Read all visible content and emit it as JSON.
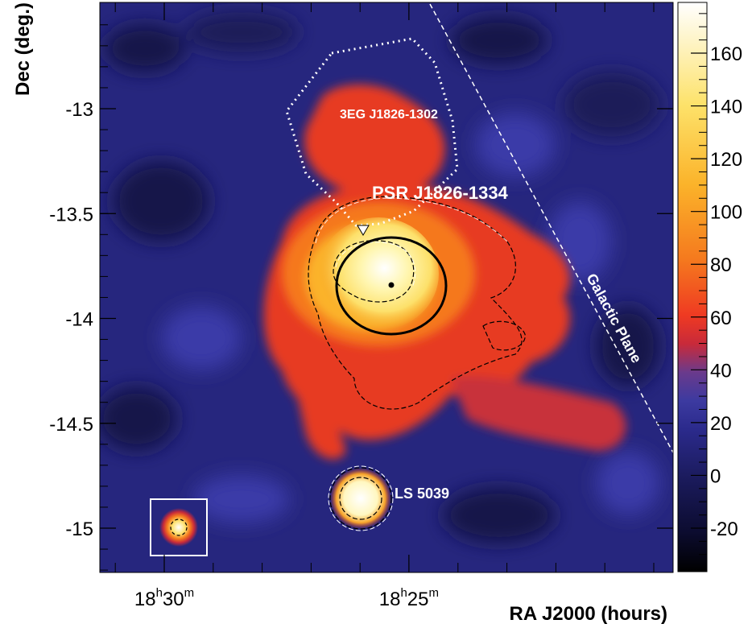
{
  "chart_data": {
    "type": "heatmap",
    "title": "",
    "xlabel": "RA J2000 (hours)",
    "ylabel": "Dec (deg.)",
    "x_ticks": [
      {
        "hours": "18",
        "minutes": "30",
        "h_sup": "h",
        "m_sup": "m",
        "ra": 18.5
      },
      {
        "hours": "18",
        "minutes": "25",
        "h_sup": "h",
        "m_sup": "m",
        "ra": 18.4167
      }
    ],
    "y_ticks": [
      {
        "value": -13,
        "label": "-13"
      },
      {
        "value": -13.5,
        "label": "-13.5"
      },
      {
        "value": -14,
        "label": "-14"
      },
      {
        "value": -14.5,
        "label": "-14.5"
      },
      {
        "value": -15,
        "label": "-15"
      }
    ],
    "ylim": [
      -15.2,
      -12.5
    ],
    "colorbar": {
      "range": [
        -35,
        180
      ],
      "ticks": [
        {
          "value": -20,
          "label": "-20"
        },
        {
          "value": 0,
          "label": "0"
        },
        {
          "value": 20,
          "label": "20"
        },
        {
          "value": 40,
          "label": "40"
        },
        {
          "value": 60,
          "label": "60"
        },
        {
          "value": 80,
          "label": "80"
        },
        {
          "value": 100,
          "label": "100"
        },
        {
          "value": 120,
          "label": "120"
        },
        {
          "value": 140,
          "label": "140"
        },
        {
          "value": 160,
          "label": "160"
        }
      ],
      "colormap": [
        "#000000",
        "#0c0c30",
        "#1a1a5a",
        "#2b2a8c",
        "#3c3aa0",
        "#6a3a8c",
        "#c82a3a",
        "#ef3a22",
        "#f57a1e",
        "#fbb32a",
        "#fde26a",
        "#ffffff"
      ]
    },
    "annotations": [
      {
        "label": "PSR J1826-1334",
        "type": "pulsar"
      },
      {
        "label": "3EG J1826-1302",
        "type": "egret-source"
      },
      {
        "label": "LS 5039",
        "type": "point-source"
      },
      {
        "label": "Galactic Plane",
        "type": "line"
      }
    ],
    "colors": {
      "background": "#26267e",
      "dark_blob": "#141448",
      "light_blob": "#3b3ba8",
      "emission_red": "#e73a22",
      "emission_orange": "#f5781e",
      "emission_yellow": "#fde06a",
      "core_white": "#ffffff"
    }
  }
}
